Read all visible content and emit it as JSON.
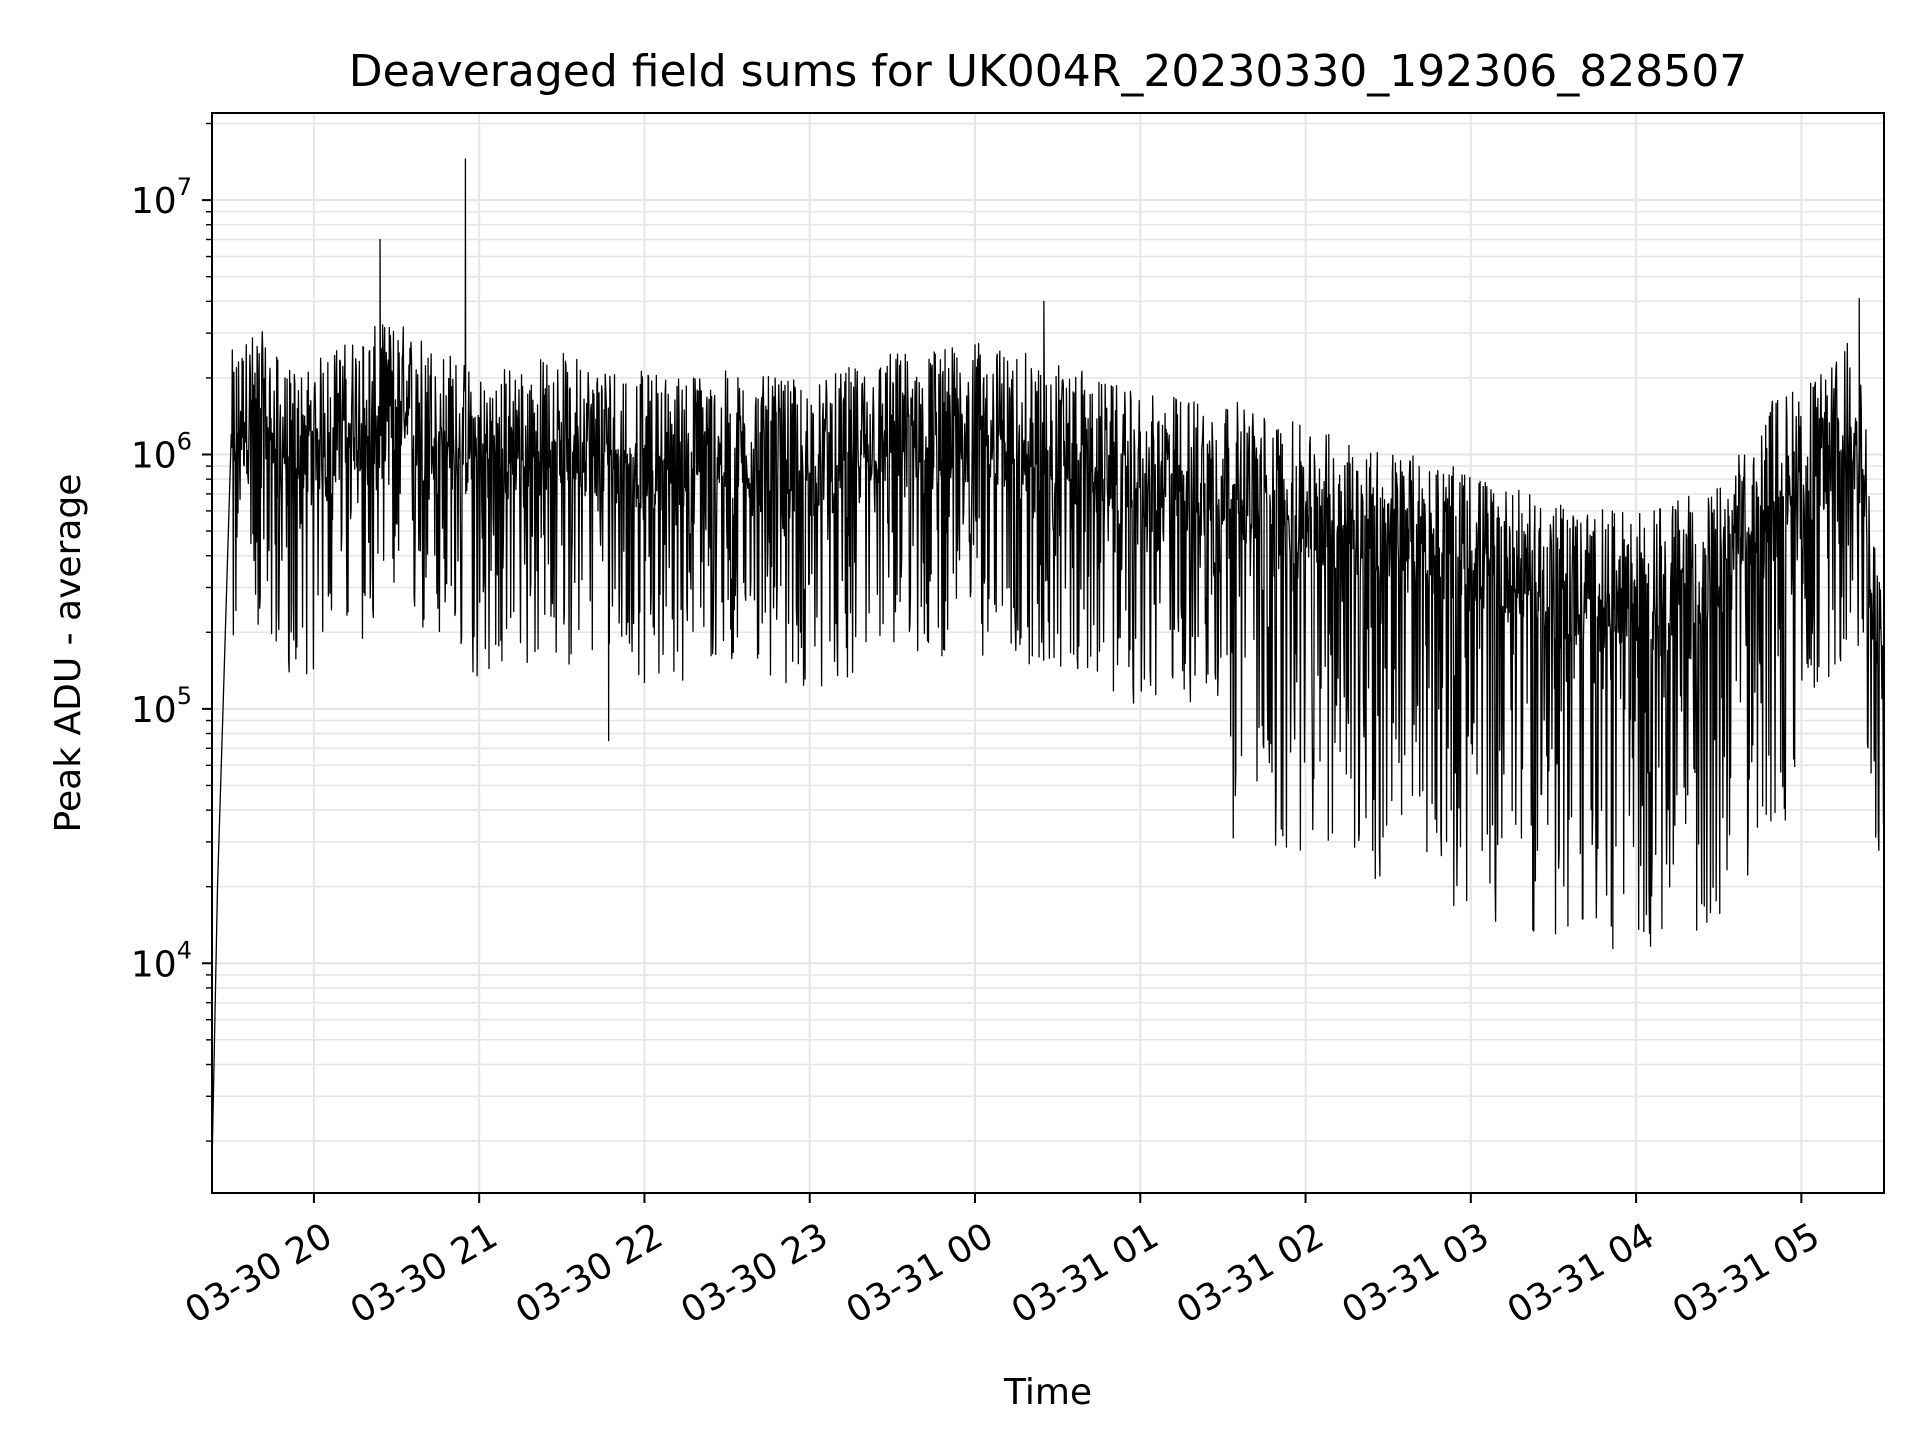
{
  "chart_data": {
    "type": "line",
    "title": "Deaveraged field sums for UK004R_20230330_192306_828507",
    "xlabel": "Time",
    "ylabel": "Peak ADU - average",
    "yscale": "log",
    "grid": true,
    "line_color": "#000000",
    "grid_color": "#e6e6e6",
    "xlim": [
      "2023-03-30 19:23",
      "2023-03-31 05:30"
    ],
    "ylim": [
      1250,
      22000000
    ],
    "x_ticks": [
      {
        "label": "03-30 20",
        "value": "2023-03-30 20:00"
      },
      {
        "label": "03-30 21",
        "value": "2023-03-30 21:00"
      },
      {
        "label": "03-30 22",
        "value": "2023-03-30 22:00"
      },
      {
        "label": "03-30 23",
        "value": "2023-03-30 23:00"
      },
      {
        "label": "03-31 00",
        "value": "2023-03-31 00:00"
      },
      {
        "label": "03-31 01",
        "value": "2023-03-31 01:00"
      },
      {
        "label": "03-31 02",
        "value": "2023-03-31 02:00"
      },
      {
        "label": "03-31 03",
        "value": "2023-03-31 03:00"
      },
      {
        "label": "03-31 04",
        "value": "2023-03-31 04:00"
      },
      {
        "label": "03-31 05",
        "value": "2023-03-31 05:00"
      }
    ],
    "y_ticks": [
      {
        "base": "10",
        "exp": "4",
        "value": 10000
      },
      {
        "base": "10",
        "exp": "5",
        "value": 100000
      },
      {
        "base": "10",
        "exp": "6",
        "value": 1000000
      },
      {
        "base": "10",
        "exp": "7",
        "value": 10000000
      }
    ],
    "series": [
      {
        "points": [
          [
            "2023-03-30 19:23",
            1600
          ],
          [
            "2023-03-30 19:25",
            20000
          ],
          [
            "2023-03-30 19:27",
            100000
          ],
          [
            "2023-03-30 19:30",
            1200000
          ],
          [
            "2023-03-30 19:40",
            1500000
          ],
          [
            "2023-03-30 19:50",
            1000000
          ],
          [
            "2023-03-30 20:00",
            1100000
          ],
          [
            "2023-03-30 20:15",
            1400000
          ],
          [
            "2023-03-30 20:30",
            1600000
          ],
          [
            "2023-03-30 20:45",
            1300000
          ],
          [
            "2023-03-30 21:00",
            1000000
          ],
          [
            "2023-03-30 21:30",
            1200000
          ],
          [
            "2023-03-30 22:00",
            1000000
          ],
          [
            "2023-03-30 22:30",
            1000000
          ],
          [
            "2023-03-30 23:00",
            900000
          ],
          [
            "2023-03-30 23:30",
            1200000
          ],
          [
            "2023-03-31 00:00",
            1300000
          ],
          [
            "2023-03-31 00:30",
            1100000
          ],
          [
            "2023-03-31 01:00",
            800000
          ],
          [
            "2023-03-31 01:30",
            800000
          ],
          [
            "2023-03-31 02:00",
            600000
          ],
          [
            "2023-03-31 02:30",
            500000
          ],
          [
            "2023-03-31 03:00",
            400000
          ],
          [
            "2023-03-31 03:30",
            300000
          ],
          [
            "2023-03-31 04:00",
            280000
          ],
          [
            "2023-03-31 04:30",
            350000
          ],
          [
            "2023-03-31 04:50",
            800000
          ],
          [
            "2023-03-31 05:10",
            1000000
          ],
          [
            "2023-03-31 05:20",
            1500000
          ],
          [
            "2023-03-31 05:30",
            100000
          ]
        ],
        "annotated_extremes": [
          [
            "2023-03-30 20:24",
            7000000
          ],
          [
            "2023-03-30 20:55",
            14500000
          ],
          [
            "2023-03-30 21:47",
            75000
          ],
          [
            "2023-03-31 00:25",
            4000000
          ],
          [
            "2023-03-31 03:51",
            14000
          ],
          [
            "2023-03-31 04:22",
            13500
          ],
          [
            "2023-03-31 05:21",
            4100000
          ]
        ]
      }
    ]
  }
}
